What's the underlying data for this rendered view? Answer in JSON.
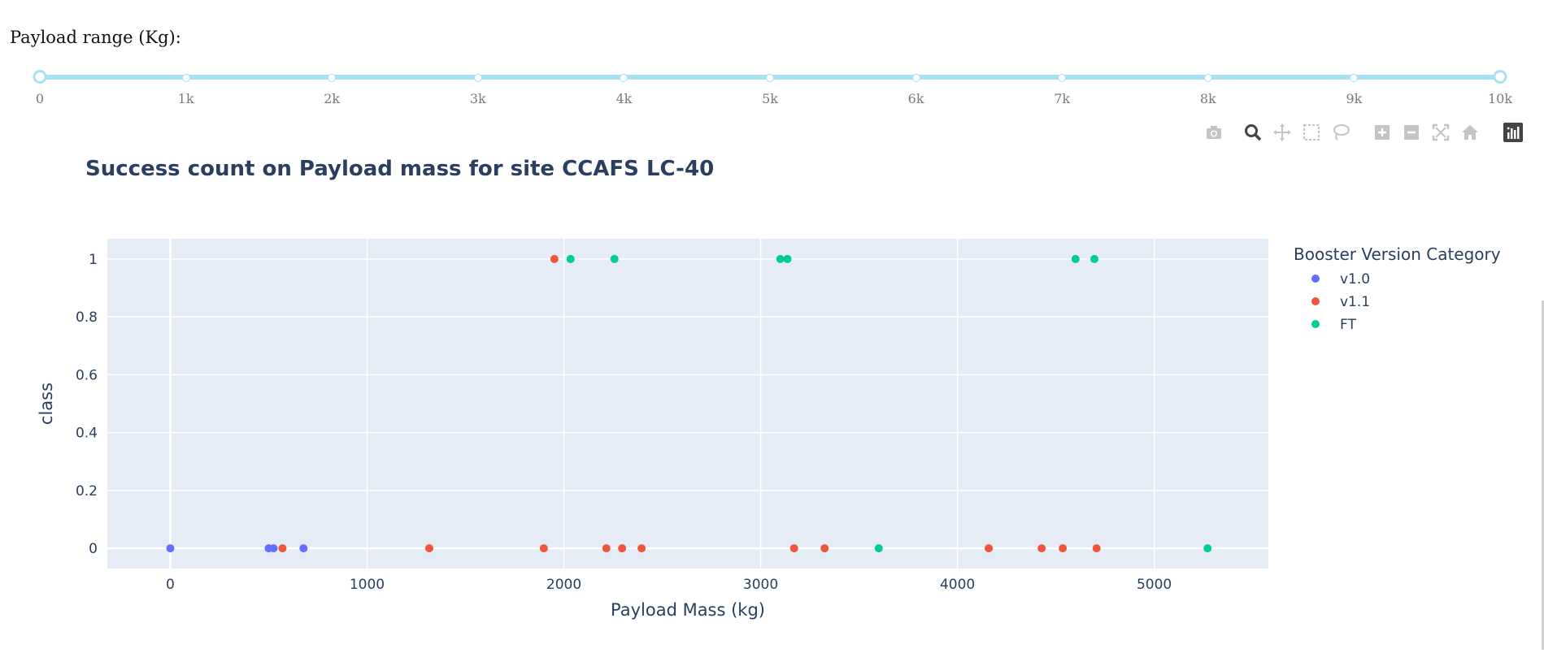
{
  "range_label": "Payload range (Kg):",
  "slider": {
    "min": 0,
    "max": 10000,
    "value": [
      0,
      10000
    ],
    "marks": [
      "0",
      "1k",
      "2k",
      "3k",
      "4k",
      "5k",
      "6k",
      "7k",
      "8k",
      "9k",
      "10k"
    ],
    "color": "#a8e1f2"
  },
  "modebar": {
    "icons": [
      "camera-icon",
      "zoom-icon",
      "pan-icon",
      "box-select-icon",
      "lasso-select-icon",
      "zoom-in-icon",
      "zoom-out-icon",
      "autoscale-icon",
      "reset-axes-icon",
      "plotly-logo-icon"
    ]
  },
  "chart_data": {
    "type": "scatter",
    "title": "Success count on Payload mass for site CCAFS LC-40",
    "xlabel": "Payload Mass (kg)",
    "ylabel": "class",
    "xlim": [
      -320,
      5580
    ],
    "ylim": [
      -0.07,
      1.07
    ],
    "xticks": [
      0,
      1000,
      2000,
      3000,
      4000,
      5000
    ],
    "xtick_labels": [
      "0",
      "1000",
      "2000",
      "3000",
      "4000",
      "5000"
    ],
    "yticks": [
      0,
      0.2,
      0.4,
      0.6,
      0.8,
      1
    ],
    "ytick_labels": [
      "0",
      "0.2",
      "0.4",
      "0.6",
      "0.8",
      "1"
    ],
    "grid": true,
    "legend_title": "Booster Version Category",
    "legend_position": "right",
    "series": [
      {
        "name": "v1.0",
        "color": "#636efa",
        "points": [
          [
            0,
            0
          ],
          [
            500,
            0
          ],
          [
            525,
            0
          ],
          [
            677,
            0
          ]
        ]
      },
      {
        "name": "v1.1",
        "color": "#ef553b",
        "points": [
          [
            570,
            0
          ],
          [
            1316,
            0
          ],
          [
            1898,
            0
          ],
          [
            1952,
            1
          ],
          [
            2216,
            0
          ],
          [
            2296,
            0
          ],
          [
            2395,
            0
          ],
          [
            3170,
            0
          ],
          [
            3325,
            0
          ],
          [
            4159,
            0
          ],
          [
            4428,
            0
          ],
          [
            4535,
            0
          ],
          [
            4707,
            0
          ]
        ]
      },
      {
        "name": "FT",
        "color": "#00cc96",
        "points": [
          [
            2034,
            1
          ],
          [
            2257,
            1
          ],
          [
            3100,
            1
          ],
          [
            3136,
            1
          ],
          [
            3600,
            0
          ],
          [
            4600,
            1
          ],
          [
            4696,
            1
          ],
          [
            5271,
            0
          ]
        ]
      }
    ]
  }
}
